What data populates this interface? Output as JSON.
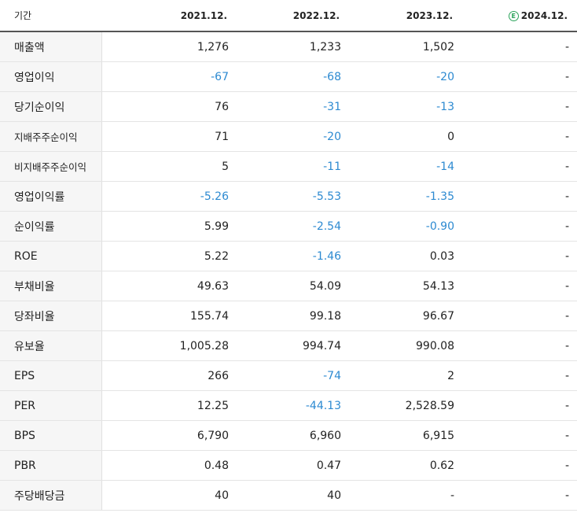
{
  "header": {
    "label": "기간",
    "periods": [
      "2021.12.",
      "2022.12.",
      "2023.12.",
      "2024.12."
    ],
    "estimate_badge": "E"
  },
  "rows": [
    {
      "label": "매출액",
      "values": [
        "1,276",
        "1,233",
        "1,502",
        "-"
      ]
    },
    {
      "label": "영업이익",
      "values": [
        "-67",
        "-68",
        "-20",
        "-"
      ]
    },
    {
      "label": "당기순이익",
      "values": [
        "76",
        "-31",
        "-13",
        "-"
      ]
    },
    {
      "label": "지배주주순이익",
      "values": [
        "71",
        "-20",
        "0",
        "-"
      ]
    },
    {
      "label": "비지배주주순이익",
      "values": [
        "5",
        "-11",
        "-14",
        "-"
      ]
    },
    {
      "label": "영업이익률",
      "values": [
        "-5.26",
        "-5.53",
        "-1.35",
        "-"
      ]
    },
    {
      "label": "순이익률",
      "values": [
        "5.99",
        "-2.54",
        "-0.90",
        "-"
      ]
    },
    {
      "label": "ROE",
      "values": [
        "5.22",
        "-1.46",
        "0.03",
        "-"
      ]
    },
    {
      "label": "부채비율",
      "values": [
        "49.63",
        "54.09",
        "54.13",
        "-"
      ]
    },
    {
      "label": "당좌비율",
      "values": [
        "155.74",
        "99.18",
        "96.67",
        "-"
      ]
    },
    {
      "label": "유보율",
      "values": [
        "1,005.28",
        "994.74",
        "990.08",
        "-"
      ]
    },
    {
      "label": "EPS",
      "values": [
        "266",
        "-74",
        "2",
        "-"
      ]
    },
    {
      "label": "PER",
      "values": [
        "12.25",
        "-44.13",
        "2,528.59",
        "-"
      ]
    },
    {
      "label": "BPS",
      "values": [
        "6,790",
        "6,960",
        "6,915",
        "-"
      ]
    },
    {
      "label": "PBR",
      "values": [
        "0.48",
        "0.47",
        "0.62",
        "-"
      ]
    },
    {
      "label": "주당배당금",
      "values": [
        "40",
        "40",
        "-",
        "-"
      ]
    }
  ],
  "colors": {
    "negative": "#2d8ad1",
    "estimate_badge": "#2aa35a"
  }
}
